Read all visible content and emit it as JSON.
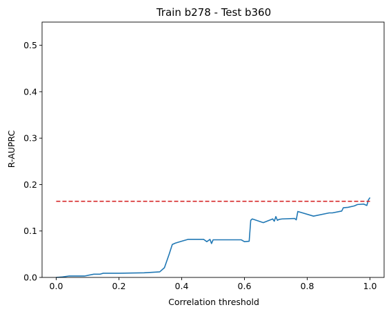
{
  "chart_data": {
    "type": "line",
    "title": "Train b278 - Test b360",
    "xlabel": "Correlation threshold",
    "ylabel": "R-AUPRC",
    "xlim": [
      -0.045,
      1.045
    ],
    "ylim": [
      0,
      0.55
    ],
    "x_ticks": [
      "0.0",
      "0.2",
      "0.4",
      "0.6",
      "0.8",
      "1.0"
    ],
    "x_tick_values": [
      0.0,
      0.2,
      0.4,
      0.6,
      0.8,
      1.0
    ],
    "y_ticks": [
      "0.0",
      "0.1",
      "0.2",
      "0.3",
      "0.4",
      "0.5"
    ],
    "y_tick_values": [
      0.0,
      0.1,
      0.2,
      0.3,
      0.4,
      0.5
    ],
    "grid": false,
    "series": [
      {
        "color": "#1f77b4",
        "style": "solid",
        "x": [
          0.0,
          0.02,
          0.04,
          0.06,
          0.09,
          0.12,
          0.14,
          0.15,
          0.2,
          0.28,
          0.33,
          0.345,
          0.36,
          0.37,
          0.38,
          0.4,
          0.42,
          0.47,
          0.48,
          0.49,
          0.495,
          0.5,
          0.59,
          0.6,
          0.615,
          0.62,
          0.625,
          0.66,
          0.69,
          0.695,
          0.7,
          0.705,
          0.71,
          0.72,
          0.76,
          0.765,
          0.77,
          0.775,
          0.82,
          0.87,
          0.88,
          0.91,
          0.915,
          0.93,
          0.95,
          0.96,
          0.98,
          0.99,
          0.995,
          1.0
        ],
        "y": [
          0.0,
          0.001,
          0.003,
          0.003,
          0.003,
          0.007,
          0.007,
          0.009,
          0.009,
          0.01,
          0.012,
          0.021,
          0.05,
          0.071,
          0.074,
          0.078,
          0.082,
          0.082,
          0.077,
          0.082,
          0.073,
          0.081,
          0.081,
          0.077,
          0.078,
          0.123,
          0.126,
          0.118,
          0.126,
          0.121,
          0.131,
          0.123,
          0.125,
          0.126,
          0.127,
          0.124,
          0.142,
          0.141,
          0.132,
          0.139,
          0.139,
          0.143,
          0.15,
          0.151,
          0.154,
          0.157,
          0.158,
          0.155,
          0.167,
          0.172
        ]
      },
      {
        "color": "#d62728",
        "style": "dashed",
        "x": [
          0.0,
          1.0
        ],
        "y": [
          0.164,
          0.164
        ]
      }
    ]
  }
}
